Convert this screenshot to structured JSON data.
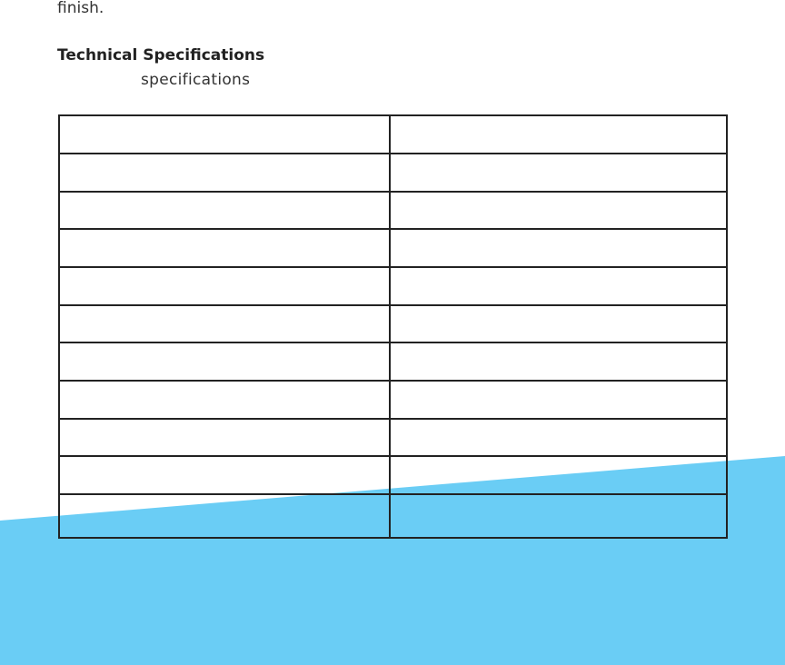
{
  "intro": {
    "tail": "finish."
  },
  "section": {
    "heading": "Technical Specifications",
    "subheading": "specifications"
  }
}
